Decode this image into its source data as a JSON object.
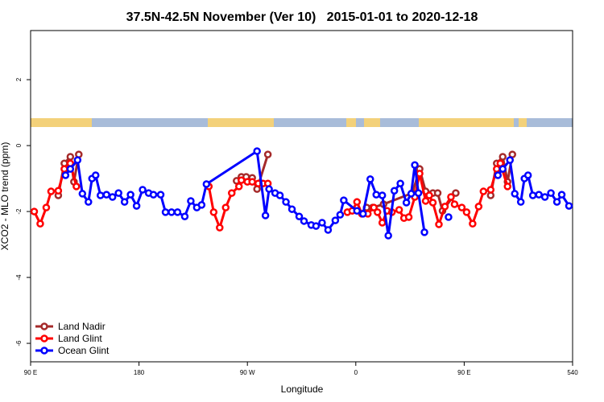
{
  "chart_data": {
    "type": "line",
    "title": "37.5N-42.5N November (Ver 10)   2015-01-01 to 2020-12-18",
    "xlabel": "Longitude",
    "ylabel": "XCO2 - MLO trend (ppm)",
    "xlim": [
      90,
      540
    ],
    "ylim": [
      -6.56,
      3.49
    ],
    "xticks": [
      {
        "value": 90,
        "label": "90 E"
      },
      180,
      {
        "value": 270,
        "label": "90 W"
      },
      {
        "value": 360,
        "label": "0"
      },
      {
        "value": 450,
        "label": "90 E"
      },
      540
    ],
    "yticks": [
      -6,
      -4,
      -2,
      0,
      2
    ],
    "legend": "bottom-left",
    "series": [
      {
        "name": "Land Nadir",
        "color": "#a52a2a",
        "x": [
          113,
          118,
          123,
          126,
          130,
          null,
          261,
          265,
          269,
          274,
          278,
          287,
          null,
          369,
          374,
          383,
          407,
          413,
          418,
          424,
          428,
          432,
          443,
          null,
          472,
          477,
          482,
          486,
          490
        ],
        "values": [
          -1.51,
          -0.54,
          -0.34,
          -1.1,
          -0.27,
          null,
          -1.07,
          -0.95,
          -0.95,
          -0.98,
          -1.32,
          -0.27,
          null,
          -1.88,
          -1.88,
          -1.78,
          -1.44,
          -0.71,
          -1.39,
          -1.44,
          -1.44,
          -1.98,
          -1.44,
          null,
          -1.51,
          -0.54,
          -0.34,
          -1.1,
          -0.27
        ]
      },
      {
        "name": "Land Glint",
        "color": "#ff0000",
        "x": [
          93,
          98,
          103,
          107,
          113,
          118,
          123,
          128,
          null,
          238,
          242,
          247,
          252,
          257,
          263,
          265,
          270,
          274,
          279,
          283,
          287,
          null,
          353,
          357,
          361,
          365,
          370,
          375,
          378,
          382,
          386,
          390,
          396,
          400,
          404,
          409,
          413,
          418,
          421,
          424,
          429,
          434,
          439,
          442,
          448,
          452,
          457,
          462,
          466,
          472,
          477,
          480,
          486
        ],
        "values": [
          -2.0,
          -2.37,
          -1.88,
          -1.39,
          -1.37,
          -0.71,
          -0.54,
          -1.24,
          null,
          -1.24,
          -2.02,
          -2.49,
          -1.88,
          -1.44,
          -1.24,
          -1.05,
          -1.1,
          -1.1,
          -1.15,
          -1.15,
          -1.15,
          null,
          -2.02,
          -1.98,
          -1.71,
          -2.07,
          -2.07,
          -1.88,
          -2.02,
          -2.34,
          -1.98,
          -2.02,
          -1.95,
          -2.2,
          -2.17,
          -1.56,
          -0.85,
          -1.68,
          -1.51,
          -1.73,
          -2.39,
          -1.85,
          -1.56,
          -1.78,
          -1.88,
          -2.02,
          -2.37,
          -1.85,
          -1.39,
          -1.34,
          -0.71,
          -0.54,
          -1.24
        ]
      },
      {
        "name": "Ocean Glint",
        "color": "#0000ff",
        "x": [
          119,
          123,
          129,
          133,
          138,
          141,
          144,
          148,
          153,
          158,
          163,
          168,
          173,
          178,
          183,
          188,
          192,
          198,
          202,
          207,
          212,
          218,
          223,
          228,
          232,
          236,
          278,
          285,
          288,
          293,
          297,
          302,
          307,
          313,
          317,
          323,
          327,
          332,
          337,
          343,
          347,
          350,
          361,
          366,
          372,
          377,
          382,
          387,
          392,
          397,
          402,
          406,
          409,
          412,
          417,
          null,
          437,
          null,
          478,
          482,
          488,
          492,
          497,
          500,
          503,
          507,
          512,
          517,
          522,
          527,
          531,
          537
        ],
        "values": [
          -0.9,
          -0.71,
          -0.44,
          -1.46,
          -1.71,
          -1.0,
          -0.9,
          -1.51,
          -1.49,
          -1.56,
          -1.44,
          -1.71,
          -1.49,
          -1.83,
          -1.34,
          -1.44,
          -1.49,
          -1.49,
          -2.02,
          -2.02,
          -2.02,
          -2.15,
          -1.68,
          -1.88,
          -1.8,
          -1.17,
          -0.17,
          -2.12,
          -1.32,
          -1.44,
          -1.51,
          -1.71,
          -1.93,
          -2.15,
          -2.29,
          -2.41,
          -2.44,
          -2.34,
          -2.56,
          -2.27,
          -2.1,
          -1.66,
          -1.98,
          -2.07,
          -1.02,
          -1.49,
          -1.51,
          -2.73,
          -1.37,
          -1.15,
          -1.73,
          -1.46,
          -0.59,
          -1.44,
          -2.63,
          null,
          -2.17,
          null,
          -0.9,
          -0.71,
          -0.44,
          -1.46,
          -1.71,
          -1.0,
          -0.9,
          -1.51,
          -1.49,
          -1.56,
          -1.44,
          -1.71,
          -1.49,
          -1.83
        ]
      }
    ]
  }
}
